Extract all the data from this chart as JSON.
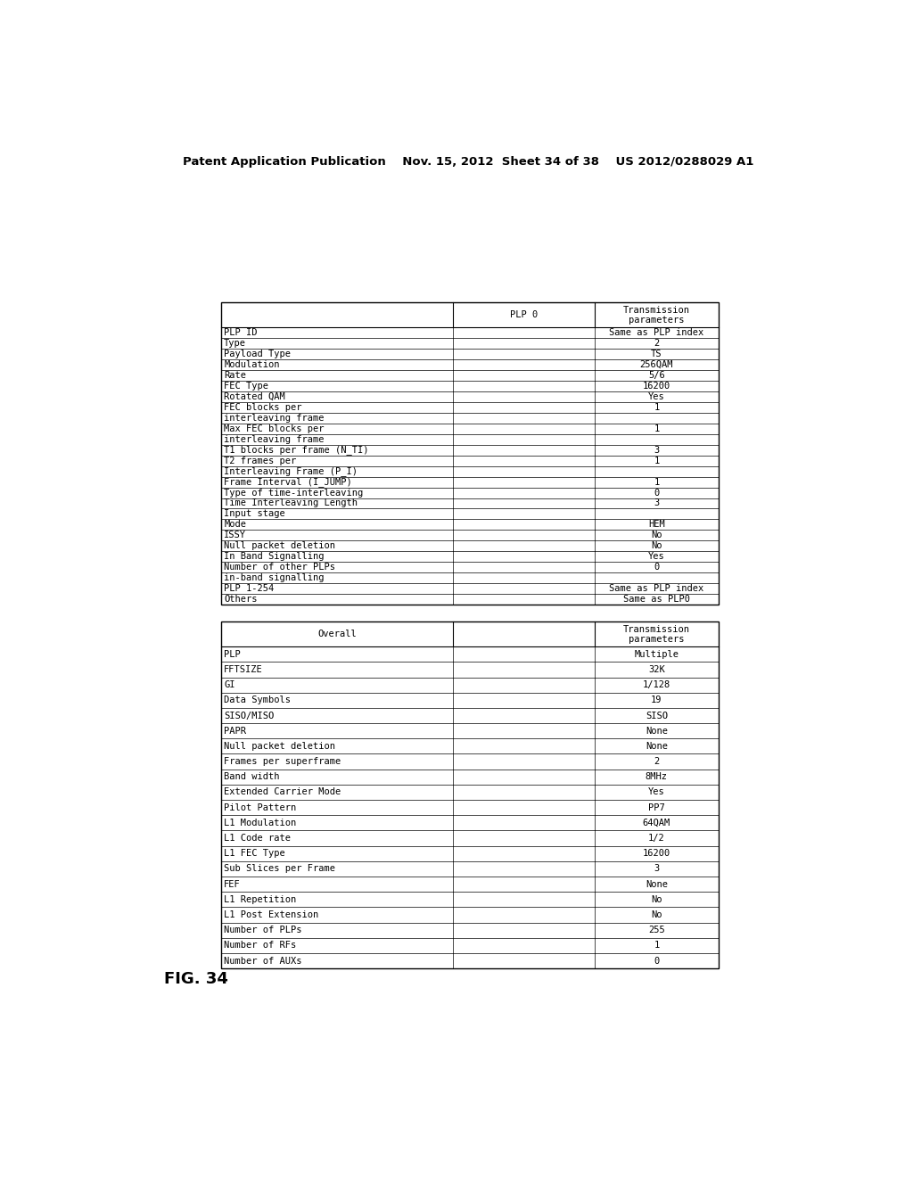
{
  "header_text": "Patent Application Publication    Nov. 15, 2012  Sheet 34 of 38    US 2012/0288029 A1",
  "fig_label": "FIG. 34",
  "table1": {
    "col0_header": "",
    "col1_header": "PLP 0",
    "col2_header_line1": "Transmission",
    "col2_header_line2": "parameters",
    "rows": [
      [
        "PLP ID",
        "",
        "Same as PLP index"
      ],
      [
        "Type",
        "",
        "2"
      ],
      [
        "Payload Type",
        "",
        "TS"
      ],
      [
        "Modulation",
        "",
        "256QAM"
      ],
      [
        "Rate",
        "",
        "5/6"
      ],
      [
        "FEC Type",
        "",
        "16200"
      ],
      [
        "Rotated QAM",
        "",
        "Yes"
      ],
      [
        "FEC blocks per",
        "",
        "1"
      ],
      [
        "interleaving frame",
        "",
        ""
      ],
      [
        "Max FEC blocks per",
        "",
        "1"
      ],
      [
        "interleaving frame",
        "",
        ""
      ],
      [
        "T1 blocks per frame (N_TI)",
        "",
        "3"
      ],
      [
        "T2 frames per",
        "",
        "1"
      ],
      [
        "Interleaving Frame (P_I)",
        "",
        ""
      ],
      [
        "Frame Interval (I_JUMP)",
        "",
        "1"
      ],
      [
        "Type of time-interleaving",
        "",
        "0"
      ],
      [
        "Time Interleaving Length",
        "",
        "3"
      ],
      [
        "Input stage",
        "",
        ""
      ],
      [
        "Mode",
        "",
        "HEM"
      ],
      [
        "ISSY",
        "",
        "No"
      ],
      [
        "Null packet deletion",
        "",
        "No"
      ],
      [
        "In Band Signalling",
        "",
        "Yes"
      ],
      [
        "Number of other PLPs",
        "",
        "0"
      ],
      [
        "in-band signalling",
        "",
        ""
      ],
      [
        "PLP 1-254",
        "",
        "Same as PLP index"
      ],
      [
        "Others",
        "",
        "Same as PLP0"
      ]
    ]
  },
  "table2": {
    "col0_header": "Overall",
    "col1_header": "",
    "col2_header_line1": "Transmission",
    "col2_header_line2": "parameters",
    "rows": [
      [
        "PLP",
        "",
        "Multiple"
      ],
      [
        "FFTSIZE",
        "",
        "32K"
      ],
      [
        "GI",
        "",
        "1/128"
      ],
      [
        "Data Symbols",
        "",
        "19"
      ],
      [
        "SISO/MISO",
        "",
        "SISO"
      ],
      [
        "PAPR",
        "",
        "None"
      ],
      [
        "Null packet deletion",
        "",
        "None"
      ],
      [
        "Frames per superframe",
        "",
        "2"
      ],
      [
        "Band width",
        "",
        "8MHz"
      ],
      [
        "Extended Carrier Mode",
        "",
        "Yes"
      ],
      [
        "Pilot Pattern",
        "",
        "PP7"
      ],
      [
        "L1 Modulation",
        "",
        "64QAM"
      ],
      [
        "L1 Code rate",
        "",
        "1/2"
      ],
      [
        "L1 FEC Type",
        "",
        "16200"
      ],
      [
        "Sub Slices per Frame",
        "",
        "3"
      ],
      [
        "FEF",
        "",
        "None"
      ],
      [
        "L1 Repetition",
        "",
        "No"
      ],
      [
        "L1 Post Extension",
        "",
        "No"
      ],
      [
        "Number of PLPs",
        "",
        "255"
      ],
      [
        "Number of RFs",
        "",
        "1"
      ],
      [
        "Number of AUXs",
        "",
        "0"
      ]
    ]
  },
  "bg_color": "#ffffff",
  "text_color": "#000000",
  "line_color": "#000000"
}
